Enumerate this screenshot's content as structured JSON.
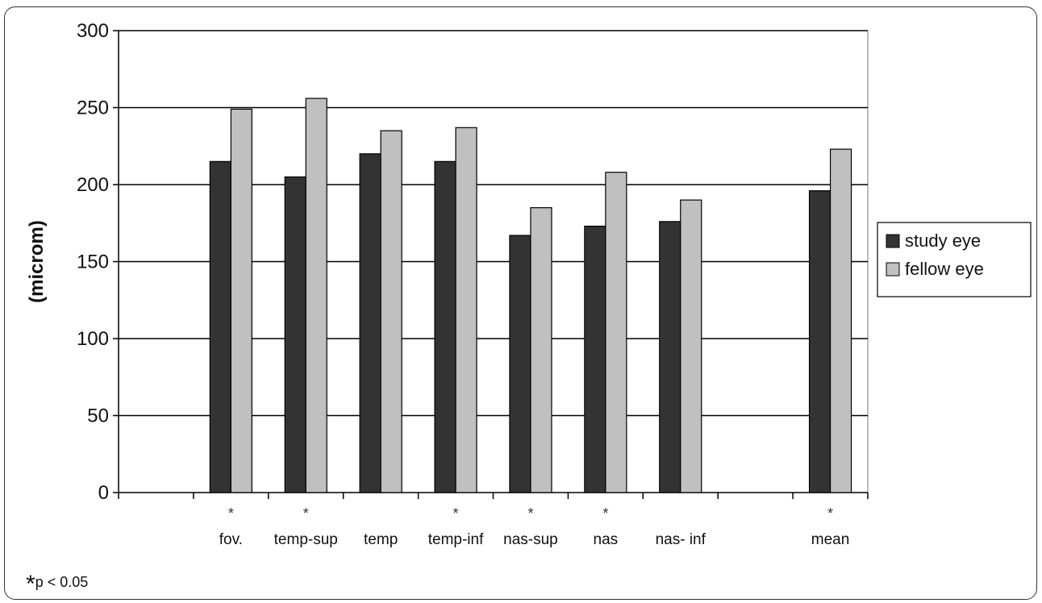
{
  "chart_data": {
    "type": "bar",
    "ylabel": "(microm)",
    "ylim": [
      0,
      300
    ],
    "yticks": [
      0,
      50,
      100,
      150,
      200,
      250,
      300
    ],
    "categories": [
      "",
      "fov.",
      "temp-sup",
      "temp",
      "temp-inf",
      "nas-sup",
      "nas",
      "nas- inf",
      "",
      "mean"
    ],
    "significance_markers": [
      "",
      "*",
      "*",
      "",
      "*",
      "*",
      "*",
      "",
      "",
      "*"
    ],
    "series": [
      {
        "name": "study eye",
        "color": "#333333",
        "values": [
          null,
          215,
          205,
          220,
          215,
          167,
          173,
          176,
          null,
          196
        ]
      },
      {
        "name": "fellow eye",
        "color": "#c0c0c0",
        "values": [
          null,
          249,
          256,
          235,
          237,
          185,
          208,
          190,
          null,
          223
        ]
      }
    ],
    "grid": true,
    "legend": "right"
  },
  "footnote": {
    "star": "*",
    "text": "p < 0.05"
  }
}
